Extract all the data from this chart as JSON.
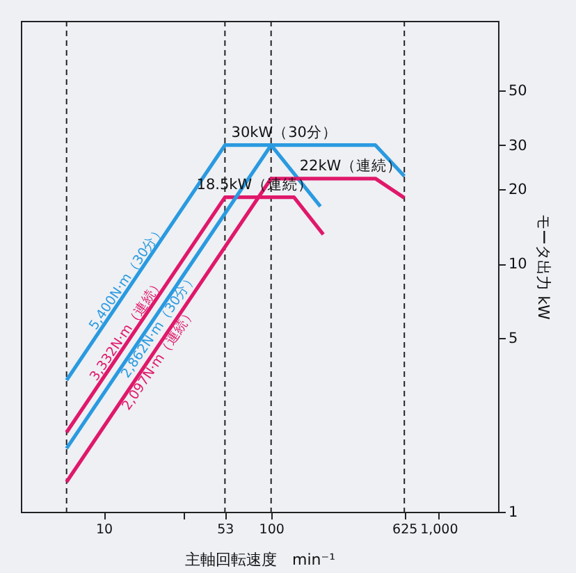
{
  "chart_data": {
    "type": "line",
    "xlabel": "主軸回転速度　min⁻¹",
    "ylabel": "モータ出力 kW",
    "log": "xy",
    "xlim": [
      3.2,
      2270
    ],
    "ylim": [
      1,
      95
    ],
    "xticks": [
      10,
      {
        "value": 30,
        "label": null
      },
      53,
      100,
      625,
      {
        "value": 1000,
        "label": "1,000"
      }
    ],
    "yticks": [
      1,
      5,
      10,
      20,
      30,
      50
    ],
    "grid": false,
    "line_style": "solid",
    "marker": "none",
    "series": [
      {
        "name": "5,400N·m（30分）",
        "color": "#2a9ae0",
        "x": [
          6,
          53,
          420,
          625
        ],
        "values": [
          3.39,
          30,
          30,
          22.5
        ]
      },
      {
        "name": "3,332N·m（連続）",
        "color": "#e0186a",
        "x": [
          6,
          53,
          137,
          205
        ],
        "values": [
          2.09,
          18.5,
          18.5,
          13.1
        ]
      },
      {
        "name": "2,862N·m（30分）",
        "color": "#2a9ae0",
        "x": [
          6,
          100,
          197
        ],
        "values": [
          1.8,
          30,
          17
        ]
      },
      {
        "name": "2,097N·m（連続）",
        "color": "#e0186a",
        "x": [
          6,
          100,
          420,
          625
        ],
        "values": [
          1.32,
          22,
          22,
          18.4
        ]
      }
    ],
    "ref_lines": [
      {
        "axis": "x",
        "value": 6,
        "line_style": "dashed",
        "color": "#222222"
      },
      {
        "axis": "x",
        "value": 53,
        "line_style": "dashed",
        "color": "#222222"
      },
      {
        "axis": "x",
        "value": 100,
        "line_style": "dashed",
        "color": "#222222"
      },
      {
        "axis": "x",
        "value": 625,
        "line_style": "dashed",
        "color": "#222222"
      }
    ],
    "annotations": [
      {
        "text": "30kW（30分）",
        "x": 120,
        "y": 30
      },
      {
        "text": "22kW（連続）",
        "x": 300,
        "y": 22
      },
      {
        "text": "18.5kW（連続）",
        "x": 80,
        "y": 18.5
      }
    ]
  }
}
